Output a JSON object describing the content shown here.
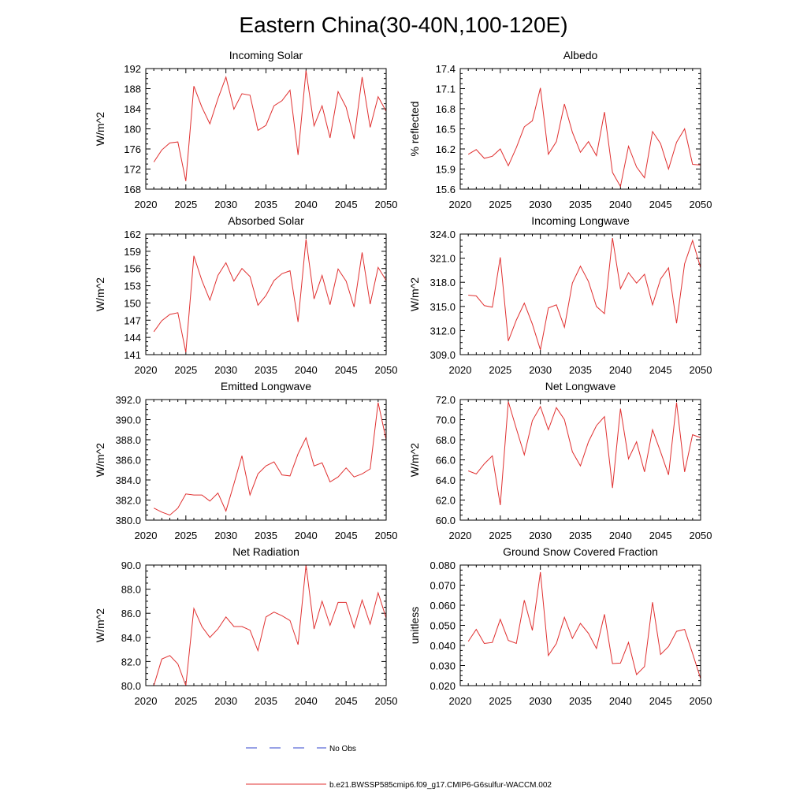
{
  "title": "Eastern China(30-40N,100-120E)",
  "legend": {
    "entries": [
      {
        "label": "No Obs",
        "color": "#3344cc",
        "dash": true
      },
      {
        "label": "b.e21.BWSSP585cmip6.f09_g17.CMIP6-G6sulfur-WACCM.002",
        "color": "#e03030",
        "dash": false
      }
    ]
  },
  "chart_data": [
    {
      "type": "line",
      "title": "Incoming Solar",
      "ylabel": "W/m^2",
      "xlim": [
        2020,
        2050
      ],
      "ylim": [
        168,
        192
      ],
      "xticks": [
        2020,
        2025,
        2030,
        2035,
        2040,
        2045,
        2050
      ],
      "xticklabels": [
        "2020",
        "2025",
        "2030",
        "2035",
        "2040",
        "2045",
        "2050"
      ],
      "yticks": [
        168,
        172,
        176,
        180,
        184,
        188,
        192
      ],
      "yticklabels": [
        "168",
        "172",
        "176",
        "180",
        "184",
        "188",
        "192"
      ],
      "x": [
        2021,
        2022,
        2023,
        2024,
        2025,
        2026,
        2027,
        2028,
        2029,
        2030,
        2031,
        2032,
        2033,
        2034,
        2035,
        2036,
        2037,
        2038,
        2039,
        2040,
        2041,
        2042,
        2043,
        2044,
        2045,
        2046,
        2047,
        2048,
        2049,
        2050
      ],
      "series": [
        {
          "values": [
            173.4,
            175.8,
            177.2,
            177.4,
            169.6,
            188.5,
            184.3,
            181.0,
            186.0,
            190.3,
            183.9,
            187.0,
            186.7,
            179.7,
            180.7,
            184.6,
            185.6,
            187.7,
            174.8,
            191.6,
            180.6,
            184.6,
            178.2,
            187.4,
            184.3,
            178.0,
            190.3,
            180.3,
            186.4,
            183.5
          ],
          "color": "#e03030"
        }
      ]
    },
    {
      "type": "line",
      "title": "Albedo",
      "ylabel": "% reflected",
      "xlim": [
        2020,
        2050
      ],
      "ylim": [
        15.6,
        17.4
      ],
      "xticks": [
        2020,
        2025,
        2030,
        2035,
        2040,
        2045,
        2050
      ],
      "xticklabels": [
        "2020",
        "2025",
        "2030",
        "2035",
        "2040",
        "2045",
        "2050"
      ],
      "yticks": [
        15.6,
        15.9,
        16.2,
        16.5,
        16.8,
        17.1,
        17.4
      ],
      "yticklabels": [
        "15.6",
        "15.9",
        "16.2",
        "16.5",
        "16.8",
        "17.1",
        "17.4"
      ],
      "x": [
        2021,
        2022,
        2023,
        2024,
        2025,
        2026,
        2027,
        2028,
        2029,
        2030,
        2031,
        2032,
        2033,
        2034,
        2035,
        2036,
        2037,
        2038,
        2039,
        2040,
        2041,
        2042,
        2043,
        2044,
        2045,
        2046,
        2047,
        2048,
        2049,
        2050
      ],
      "series": [
        {
          "values": [
            16.12,
            16.19,
            16.06,
            16.09,
            16.2,
            15.95,
            16.22,
            16.53,
            16.62,
            17.11,
            16.12,
            16.31,
            16.87,
            16.45,
            16.15,
            16.31,
            16.1,
            16.75,
            15.85,
            15.64,
            16.24,
            15.93,
            15.77,
            16.46,
            16.28,
            15.9,
            16.3,
            16.5,
            15.97,
            15.96
          ],
          "color": "#e03030"
        }
      ]
    },
    {
      "type": "line",
      "title": "Absorbed Solar",
      "ylabel": "W/m^2",
      "xlim": [
        2020,
        2050
      ],
      "ylim": [
        141,
        162
      ],
      "xticks": [
        2020,
        2025,
        2030,
        2035,
        2040,
        2045,
        2050
      ],
      "xticklabels": [
        "2020",
        "2025",
        "2030",
        "2035",
        "2040",
        "2045",
        "2050"
      ],
      "yticks": [
        141,
        144,
        147,
        150,
        153,
        156,
        159,
        162
      ],
      "yticklabels": [
        "141",
        "144",
        "147",
        "150",
        "153",
        "156",
        "159",
        "162"
      ],
      "x": [
        2021,
        2022,
        2023,
        2024,
        2025,
        2026,
        2027,
        2028,
        2029,
        2030,
        2031,
        2032,
        2033,
        2034,
        2035,
        2036,
        2037,
        2038,
        2039,
        2040,
        2041,
        2042,
        2043,
        2044,
        2045,
        2046,
        2047,
        2048,
        2049,
        2050
      ],
      "series": [
        {
          "values": [
            145.0,
            146.9,
            148.0,
            148.3,
            141.4,
            158.2,
            153.9,
            150.5,
            154.8,
            157.0,
            153.8,
            156.0,
            154.6,
            149.6,
            151.3,
            153.9,
            155.1,
            155.6,
            146.7,
            161.1,
            150.7,
            154.8,
            149.7,
            155.9,
            153.8,
            149.3,
            158.8,
            149.8,
            156.2,
            153.9
          ],
          "color": "#e03030"
        }
      ]
    },
    {
      "type": "line",
      "title": "Incoming Longwave",
      "ylabel": "W/m^2",
      "xlim": [
        2020,
        2050
      ],
      "ylim": [
        309,
        324
      ],
      "xticks": [
        2020,
        2025,
        2030,
        2035,
        2040,
        2045,
        2050
      ],
      "xticklabels": [
        "2020",
        "2025",
        "2030",
        "2035",
        "2040",
        "2045",
        "2050"
      ],
      "yticks": [
        309,
        312,
        315,
        318,
        321,
        324
      ],
      "yticklabels": [
        "309.0",
        "312.0",
        "315.0",
        "318.0",
        "321.0",
        "324.0"
      ],
      "x": [
        2021,
        2022,
        2023,
        2024,
        2025,
        2026,
        2027,
        2028,
        2029,
        2030,
        2031,
        2032,
        2033,
        2034,
        2035,
        2036,
        2037,
        2038,
        2039,
        2040,
        2041,
        2042,
        2043,
        2044,
        2045,
        2046,
        2047,
        2048,
        2049,
        2050
      ],
      "series": [
        {
          "values": [
            316.4,
            316.3,
            315.1,
            314.9,
            321.1,
            310.7,
            313.3,
            315.4,
            312.8,
            309.6,
            314.8,
            315.2,
            312.4,
            317.9,
            320.0,
            318.1,
            315.0,
            314.1,
            323.5,
            317.2,
            319.2,
            317.9,
            319.0,
            315.2,
            318.4,
            319.8,
            312.9,
            320.3,
            323.2,
            319.8
          ],
          "color": "#e03030"
        }
      ]
    },
    {
      "type": "line",
      "title": "Emitted Longwave",
      "ylabel": "W/m^2",
      "xlim": [
        2020,
        2050
      ],
      "ylim": [
        380,
        392
      ],
      "xticks": [
        2020,
        2025,
        2030,
        2035,
        2040,
        2045,
        2050
      ],
      "xticklabels": [
        "2020",
        "2025",
        "2030",
        "2035",
        "2040",
        "2045",
        "2050"
      ],
      "yticks": [
        380,
        382,
        384,
        386,
        388,
        390,
        392
      ],
      "yticklabels": [
        "380.0",
        "382.0",
        "384.0",
        "386.0",
        "388.0",
        "390.0",
        "392.0"
      ],
      "x": [
        2021,
        2022,
        2023,
        2024,
        2025,
        2026,
        2027,
        2028,
        2029,
        2030,
        2031,
        2032,
        2033,
        2034,
        2035,
        2036,
        2037,
        2038,
        2039,
        2040,
        2041,
        2042,
        2043,
        2044,
        2045,
        2046,
        2047,
        2048,
        2049,
        2050
      ],
      "series": [
        {
          "values": [
            381.2,
            380.8,
            380.5,
            381.2,
            382.6,
            382.5,
            382.5,
            381.9,
            382.7,
            380.9,
            383.6,
            386.4,
            382.5,
            384.6,
            385.4,
            385.8,
            384.5,
            384.4,
            386.6,
            388.2,
            385.4,
            385.7,
            383.8,
            384.3,
            385.2,
            384.3,
            384.6,
            385.1,
            391.7,
            388.0
          ],
          "color": "#e03030"
        }
      ]
    },
    {
      "type": "line",
      "title": "Net Longwave",
      "ylabel": "W/m^2",
      "xlim": [
        2020,
        2050
      ],
      "ylim": [
        60,
        72
      ],
      "xticks": [
        2020,
        2025,
        2030,
        2035,
        2040,
        2045,
        2050
      ],
      "xticklabels": [
        "2020",
        "2025",
        "2030",
        "2035",
        "2040",
        "2045",
        "2050"
      ],
      "yticks": [
        60,
        62,
        64,
        66,
        68,
        70,
        72
      ],
      "yticklabels": [
        "60.0",
        "62.0",
        "64.0",
        "66.0",
        "68.0",
        "70.0",
        "72.0"
      ],
      "x": [
        2021,
        2022,
        2023,
        2024,
        2025,
        2026,
        2027,
        2028,
        2029,
        2030,
        2031,
        2032,
        2033,
        2034,
        2035,
        2036,
        2037,
        2038,
        2039,
        2040,
        2041,
        2042,
        2043,
        2044,
        2045,
        2046,
        2047,
        2048,
        2049,
        2050
      ],
      "series": [
        {
          "values": [
            64.9,
            64.6,
            65.6,
            66.4,
            61.5,
            71.8,
            69.1,
            66.5,
            69.9,
            71.3,
            69.0,
            71.2,
            70.0,
            66.8,
            65.4,
            67.8,
            69.4,
            70.3,
            63.2,
            71.1,
            66.1,
            67.8,
            64.8,
            69.0,
            66.8,
            64.5,
            71.7,
            64.8,
            68.5,
            68.2
          ],
          "color": "#e03030"
        }
      ]
    },
    {
      "type": "line",
      "title": "Net Radiation",
      "ylabel": "W/m^2",
      "xlim": [
        2020,
        2050
      ],
      "ylim": [
        80,
        90
      ],
      "xticks": [
        2020,
        2025,
        2030,
        2035,
        2040,
        2045,
        2050
      ],
      "xticklabels": [
        "2020",
        "2025",
        "2030",
        "2035",
        "2040",
        "2045",
        "2050"
      ],
      "yticks": [
        80,
        82,
        84,
        86,
        88,
        90
      ],
      "yticklabels": [
        "80.0",
        "82.0",
        "84.0",
        "86.0",
        "88.0",
        "90.0"
      ],
      "x": [
        2021,
        2022,
        2023,
        2024,
        2025,
        2026,
        2027,
        2028,
        2029,
        2030,
        2031,
        2032,
        2033,
        2034,
        2035,
        2036,
        2037,
        2038,
        2039,
        2040,
        2041,
        2042,
        2043,
        2044,
        2045,
        2046,
        2047,
        2048,
        2049,
        2050
      ],
      "series": [
        {
          "values": [
            80.0,
            82.2,
            82.5,
            81.8,
            80.0,
            86.4,
            84.9,
            84.0,
            84.7,
            85.7,
            84.9,
            84.9,
            84.6,
            82.9,
            85.7,
            86.1,
            85.8,
            85.4,
            83.4,
            90.0,
            84.7,
            87.0,
            85.0,
            86.9,
            86.9,
            84.8,
            87.1,
            85.1,
            87.7,
            85.6
          ],
          "color": "#e03030"
        }
      ]
    },
    {
      "type": "line",
      "title": "Ground Snow Covered Fraction",
      "ylabel": "unitless",
      "xlim": [
        2020,
        2050
      ],
      "ylim": [
        0.02,
        0.08
      ],
      "xticks": [
        2020,
        2025,
        2030,
        2035,
        2040,
        2045,
        2050
      ],
      "xticklabels": [
        "2020",
        "2025",
        "2030",
        "2035",
        "2040",
        "2045",
        "2050"
      ],
      "yticks": [
        0.02,
        0.03,
        0.04,
        0.05,
        0.06,
        0.07,
        0.08
      ],
      "yticklabels": [
        "0.020",
        "0.030",
        "0.040",
        "0.050",
        "0.060",
        "0.070",
        "0.080"
      ],
      "x": [
        2021,
        2022,
        2023,
        2024,
        2025,
        2026,
        2027,
        2028,
        2029,
        2030,
        2031,
        2032,
        2033,
        2034,
        2035,
        2036,
        2037,
        2038,
        2039,
        2040,
        2041,
        2042,
        2043,
        2044,
        2045,
        2046,
        2047,
        2048,
        2049,
        2050
      ],
      "series": [
        {
          "values": [
            0.042,
            0.048,
            0.041,
            0.0415,
            0.053,
            0.0425,
            0.041,
            0.0625,
            0.0475,
            0.0765,
            0.035,
            0.041,
            0.054,
            0.0435,
            0.051,
            0.046,
            0.0385,
            0.0555,
            0.031,
            0.0312,
            0.0415,
            0.0255,
            0.0295,
            0.0615,
            0.0355,
            0.0395,
            0.047,
            0.048,
            0.036,
            0.0235
          ],
          "color": "#e03030"
        }
      ]
    }
  ]
}
